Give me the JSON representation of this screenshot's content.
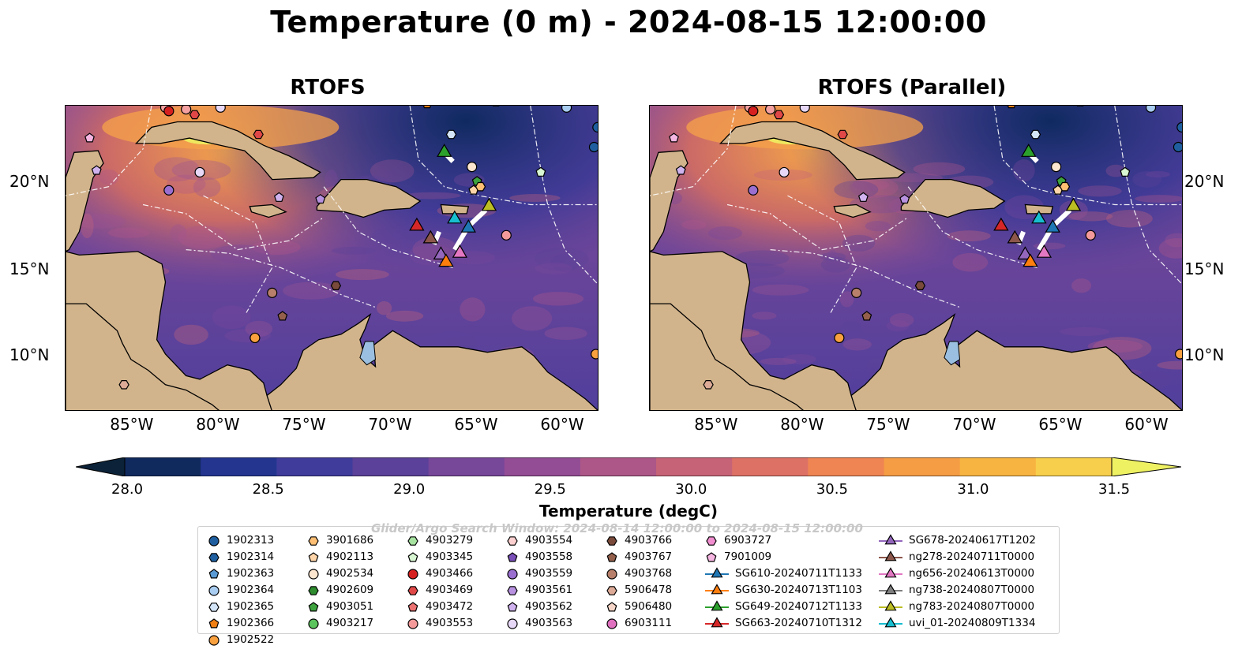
{
  "title": "Temperature (0 m) - 2024-08-15 12:00:00",
  "panels": [
    {
      "title": "RTOFS"
    },
    {
      "title": "RTOFS (Parallel)"
    }
  ],
  "lat_labels": [
    "20°N",
    "15°N",
    "10°N"
  ],
  "lon_labels": [
    "85°W",
    "80°W",
    "75°W",
    "70°W",
    "65°W",
    "60°W"
  ],
  "colorbar": {
    "label": "Temperature (degC)",
    "ticks": [
      "28.0",
      "28.5",
      "29.0",
      "29.5",
      "30.0",
      "30.5",
      "31.0",
      "31.5"
    ],
    "colors": [
      "#0b2238",
      "#102a5e",
      "#23358f",
      "#3f3c9c",
      "#5b4199",
      "#77479a",
      "#934d94",
      "#ad5788",
      "#c76377",
      "#de7166",
      "#ef8553",
      "#f59d45",
      "#f8b441",
      "#f7cf4c",
      "#eef162"
    ],
    "extend": "both"
  },
  "watermark": "Glider/Argo Search Window: 2024-08-14 12:00:00 to 2024-08-15 12:00:00",
  "map_extent": {
    "lon": [
      -89,
      -58
    ],
    "lat": [
      7,
      24
    ]
  },
  "legend": {
    "columns": [
      [
        {
          "label": "1902313",
          "marker": "circle",
          "color": "#1f5fa0"
        },
        {
          "label": "1902314",
          "marker": "hexagon",
          "color": "#1f5fa0"
        },
        {
          "label": "1902363",
          "marker": "pentagon",
          "color": "#5b9bd5"
        },
        {
          "label": "1902364",
          "marker": "circle",
          "color": "#a9cdf0"
        },
        {
          "label": "1902365",
          "marker": "hexagon",
          "color": "#d3e5f7"
        },
        {
          "label": "1902366",
          "marker": "pentagon",
          "color": "#f07f14"
        },
        {
          "label": "1902522",
          "marker": "circle",
          "color": "#f9a03f"
        }
      ],
      [
        {
          "label": "3901686",
          "marker": "hexagon",
          "color": "#fcbf73"
        },
        {
          "label": "4902113",
          "marker": "pentagon",
          "color": "#fdd5a8"
        },
        {
          "label": "4902534",
          "marker": "circle",
          "color": "#fde6cf"
        },
        {
          "label": "4902609",
          "marker": "hexagon",
          "color": "#2e8b2e"
        },
        {
          "label": "4903051",
          "marker": "pentagon",
          "color": "#3ea33e"
        },
        {
          "label": "4903217",
          "marker": "circle",
          "color": "#5cc45c"
        }
      ],
      [
        {
          "label": "4903279",
          "marker": "hexagon",
          "color": "#a6e3a0"
        },
        {
          "label": "4903345",
          "marker": "pentagon",
          "color": "#d8f6d2"
        },
        {
          "label": "4903466",
          "marker": "circle",
          "color": "#d62020"
        },
        {
          "label": "4903469",
          "marker": "hexagon",
          "color": "#e04848"
        },
        {
          "label": "4903472",
          "marker": "pentagon",
          "color": "#ec7272"
        },
        {
          "label": "4903553",
          "marker": "circle",
          "color": "#f59a9a"
        }
      ],
      [
        {
          "label": "4903554",
          "marker": "hexagon",
          "color": "#fcd0cf"
        },
        {
          "label": "4903558",
          "marker": "pentagon",
          "color": "#7a4fb8"
        },
        {
          "label": "4903559",
          "marker": "circle",
          "color": "#9a6fd0"
        },
        {
          "label": "4903561",
          "marker": "hexagon",
          "color": "#b892e0"
        },
        {
          "label": "4903562",
          "marker": "pentagon",
          "color": "#cfb2ee"
        },
        {
          "label": "4903563",
          "marker": "circle",
          "color": "#e8d8f8"
        }
      ],
      [
        {
          "label": "4903766",
          "marker": "hexagon",
          "color": "#7a4a3a"
        },
        {
          "label": "4903767",
          "marker": "pentagon",
          "color": "#94604c"
        },
        {
          "label": "4903768",
          "marker": "circle",
          "color": "#b8806a"
        },
        {
          "label": "5906478",
          "marker": "hexagon",
          "color": "#dcaa96"
        },
        {
          "label": "5906480",
          "marker": "pentagon",
          "color": "#f6d6c8"
        },
        {
          "label": "6903111",
          "marker": "circle",
          "color": "#e070c0"
        }
      ],
      [
        {
          "label": "6903727",
          "marker": "hexagon",
          "color": "#f08ed0"
        },
        {
          "label": "7901009",
          "marker": "pentagon",
          "color": "#f6b6e2"
        },
        {
          "label": "SG610-20240711T1133",
          "marker": "triangle-line",
          "color": "#1f77b4"
        },
        {
          "label": "SG630-20240713T1103",
          "marker": "triangle-line",
          "color": "#ff7f0e"
        },
        {
          "label": "SG649-20240712T1133",
          "marker": "triangle-line",
          "color": "#2ca02c"
        },
        {
          "label": "SG663-20240710T1312",
          "marker": "triangle-line",
          "color": "#d62728"
        }
      ],
      [
        {
          "label": "SG678-20240617T1202",
          "marker": "triangle-line",
          "color": "#9467bd"
        },
        {
          "label": "ng278-20240711T0000",
          "marker": "triangle-line",
          "color": "#8c564b"
        },
        {
          "label": "ng656-20240613T0000",
          "marker": "triangle-line",
          "color": "#e377c2"
        },
        {
          "label": "ng738-20240807T0000",
          "marker": "triangle-line",
          "color": "#7f7f7f"
        },
        {
          "label": "ng783-20240807T0000",
          "marker": "triangle-line",
          "color": "#bcbd22"
        },
        {
          "label": "uvi_01-20240809T1334",
          "marker": "triangle-line",
          "color": "#17becf"
        }
      ]
    ]
  },
  "observations": [
    {
      "lon": -83.2,
      "lat": 23.9,
      "marker": "circle",
      "color": "#f5a0a0"
    },
    {
      "lon": -82.0,
      "lat": 23.8,
      "marker": "circle",
      "color": "#f5a0a0"
    },
    {
      "lon": -83.0,
      "lat": 23.7,
      "marker": "circle",
      "color": "#d62020"
    },
    {
      "lon": -81.5,
      "lat": 23.5,
      "marker": "hexagon",
      "color": "#e04848"
    },
    {
      "lon": -80.0,
      "lat": 23.9,
      "marker": "circle",
      "color": "#e8d8f8"
    },
    {
      "lon": -87.6,
      "lat": 22.2,
      "marker": "pentagon",
      "color": "#f6b6e2"
    },
    {
      "lon": -77.8,
      "lat": 22.4,
      "marker": "hexagon",
      "color": "#e04848"
    },
    {
      "lon": -87.2,
      "lat": 20.4,
      "marker": "pentagon",
      "color": "#cfb2ee"
    },
    {
      "lon": -81.2,
      "lat": 20.3,
      "marker": "circle",
      "color": "#e8d8f8"
    },
    {
      "lon": -83.0,
      "lat": 19.3,
      "marker": "circle",
      "color": "#9a6fd0"
    },
    {
      "lon": -76.6,
      "lat": 18.9,
      "marker": "pentagon",
      "color": "#cfb2ee"
    },
    {
      "lon": -74.2,
      "lat": 18.8,
      "marker": "pentagon",
      "color": "#b892e0"
    },
    {
      "lon": -68.0,
      "lat": 24.1,
      "marker": "pentagon",
      "color": "#f07f14"
    },
    {
      "lon": -64.0,
      "lat": 24.2,
      "marker": "pentagon",
      "color": "#5b9bd5"
    },
    {
      "lon": -66.6,
      "lat": 22.4,
      "marker": "hexagon",
      "color": "#d3e5f7"
    },
    {
      "lon": -59.9,
      "lat": 23.9,
      "marker": "circle",
      "color": "#a9cdf0"
    },
    {
      "lon": -58.1,
      "lat": 22.8,
      "marker": "circle",
      "color": "#1f5fa0"
    },
    {
      "lon": -58.3,
      "lat": 21.7,
      "marker": "circle",
      "color": "#1f5fa0"
    },
    {
      "lon": -57.9,
      "lat": 21.4,
      "marker": "circle",
      "color": "#f9a03f"
    },
    {
      "lon": -65.4,
      "lat": 20.6,
      "marker": "circle",
      "color": "#fde6cf"
    },
    {
      "lon": -61.4,
      "lat": 20.3,
      "marker": "pentagon",
      "color": "#d8f6d2"
    },
    {
      "lon": -65.1,
      "lat": 19.8,
      "marker": "pentagon",
      "color": "#3ea33e"
    },
    {
      "lon": -65.3,
      "lat": 19.3,
      "marker": "pentagon",
      "color": "#fdd5a8"
    },
    {
      "lon": -64.9,
      "lat": 19.5,
      "marker": "hexagon",
      "color": "#fcbf73"
    },
    {
      "lon": -63.4,
      "lat": 16.8,
      "marker": "circle",
      "color": "#f59a9a"
    },
    {
      "lon": -73.3,
      "lat": 14.0,
      "marker": "hexagon",
      "color": "#7a4a3a"
    },
    {
      "lon": -77.0,
      "lat": 13.6,
      "marker": "circle",
      "color": "#b8806a"
    },
    {
      "lon": -76.4,
      "lat": 12.3,
      "marker": "pentagon",
      "color": "#94604c"
    },
    {
      "lon": -78.0,
      "lat": 11.1,
      "marker": "circle",
      "color": "#f9a03f"
    },
    {
      "lon": -85.6,
      "lat": 8.5,
      "marker": "hexagon",
      "color": "#dcaa96"
    },
    {
      "lon": -58.2,
      "lat": 10.2,
      "marker": "circle",
      "color": "#f9a03f"
    }
  ],
  "gliders": [
    {
      "lon": -67.0,
      "lat": 21.4,
      "color": "#2ca02c"
    },
    {
      "lon": -64.4,
      "lat": 18.4,
      "color": "#bcbd22"
    },
    {
      "lon": -68.6,
      "lat": 17.3,
      "color": "#d62728"
    },
    {
      "lon": -67.8,
      "lat": 16.6,
      "color": "#8c564b"
    },
    {
      "lon": -66.4,
      "lat": 17.7,
      "color": "#17becf"
    },
    {
      "lon": -65.6,
      "lat": 17.2,
      "color": "#1f77b4"
    },
    {
      "lon": -67.2,
      "lat": 15.7,
      "color": "#9467bd"
    },
    {
      "lon": -66.1,
      "lat": 15.8,
      "color": "#e377c2"
    },
    {
      "lon": -66.9,
      "lat": 15.3,
      "color": "#ff7f0e"
    }
  ]
}
